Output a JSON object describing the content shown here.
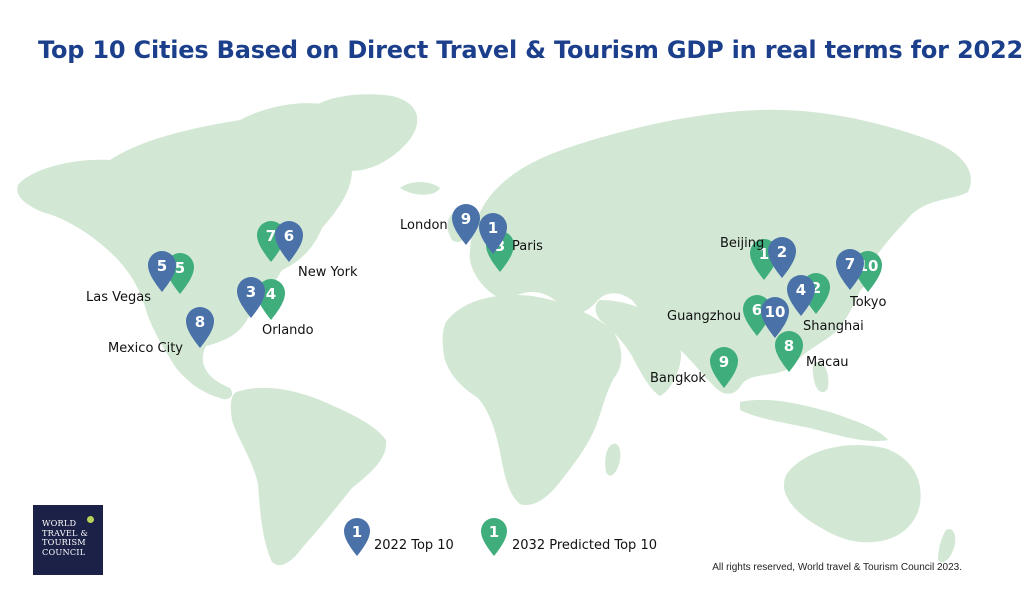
{
  "title": "Top 10 Cities Based on Direct Travel & Tourism GDP in real terms for 2022",
  "colors": {
    "title": "#1c3f8c",
    "land": "#d2e8d4",
    "pin_2022": "#4a72a8",
    "pin_2032": "#3fae7c",
    "logo_bg": "#1b2147"
  },
  "cities": [
    {
      "name": "London",
      "rank_2022": "9",
      "rank_2032": null
    },
    {
      "name": "Paris",
      "rank_2022": "1",
      "rank_2032": "3"
    },
    {
      "name": "New York",
      "rank_2022": "6",
      "rank_2032": "7"
    },
    {
      "name": "Orlando",
      "rank_2022": "3",
      "rank_2032": "4"
    },
    {
      "name": "Las Vegas",
      "rank_2022": "5",
      "rank_2032": "5"
    },
    {
      "name": "Mexico City",
      "rank_2022": "8",
      "rank_2032": null
    },
    {
      "name": "Beijing",
      "rank_2022": "2",
      "rank_2032": "1"
    },
    {
      "name": "Shanghai",
      "rank_2022": "4",
      "rank_2032": "2"
    },
    {
      "name": "Tokyo",
      "rank_2022": "7",
      "rank_2032": "10"
    },
    {
      "name": "Guangzhou",
      "rank_2022": "10",
      "rank_2032": "6"
    },
    {
      "name": "Macau",
      "rank_2022": null,
      "rank_2032": "8"
    },
    {
      "name": "Bangkok",
      "rank_2022": null,
      "rank_2032": "9"
    }
  ],
  "legend": {
    "item_2022": {
      "number": "1",
      "label": "2022 Top 10"
    },
    "item_2032": {
      "number": "1",
      "label": "2032 Predicted Top 10"
    }
  },
  "logo": {
    "line1": "WORLD",
    "line2": "TRAVEL &",
    "line3": "TOURISM",
    "line4": "COUNCIL"
  },
  "copyright": "All rights reserved, World travel & Tourism Council 2023."
}
